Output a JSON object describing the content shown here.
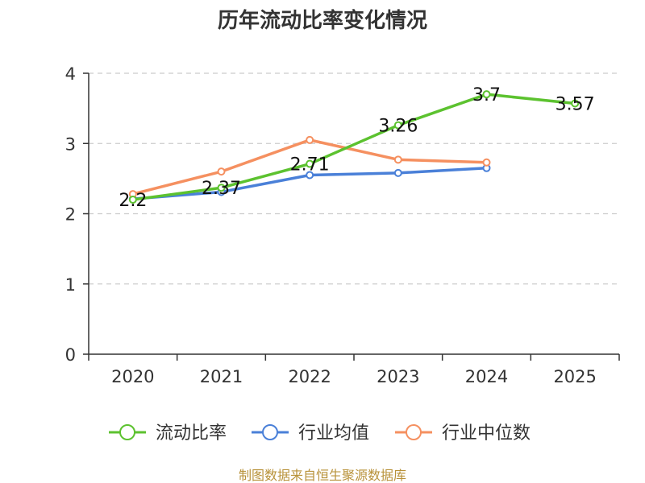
{
  "chart_data": {
    "type": "line",
    "title": "历年流动比率变化情况",
    "categories": [
      "2020",
      "2021",
      "2022",
      "2023",
      "2024",
      "2025"
    ],
    "ylim": [
      0,
      4
    ],
    "yticks": [
      0,
      1,
      2,
      3,
      4
    ],
    "xlabel": "",
    "ylabel": "",
    "grid": "horizontal dashed",
    "legend_position": "bottom",
    "series": [
      {
        "name": "流动比率",
        "color": "#5cc22f",
        "values": [
          2.2,
          2.37,
          2.71,
          3.26,
          3.7,
          3.57
        ],
        "labels": [
          "2.2",
          "2.37",
          "2.71",
          "3.26",
          "3.7",
          "3.57"
        ]
      },
      {
        "name": "行业均值",
        "color": "#4a80d8",
        "values": [
          2.21,
          2.31,
          2.55,
          2.58,
          2.65,
          null
        ]
      },
      {
        "name": "行业中位数",
        "color": "#f59060",
        "values": [
          2.28,
          2.6,
          3.05,
          2.77,
          2.73,
          null
        ]
      }
    ]
  },
  "source_note": "制图数据来自恒生聚源数据库"
}
